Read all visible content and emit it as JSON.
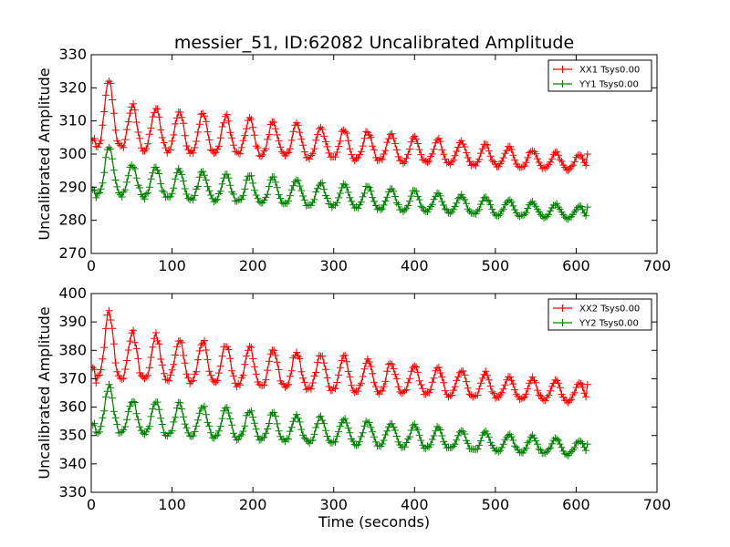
{
  "figure": {
    "title": "messier_51, ID:62082 Uncalibrated Amplitude"
  },
  "chart_data": [
    {
      "type": "line",
      "title": "messier_51, ID:62082 Uncalibrated Amplitude",
      "xlabel": "",
      "ylabel": "Uncalibrated Amplitude",
      "xlim": [
        0,
        700
      ],
      "ylim": [
        270,
        330
      ],
      "xticks": [
        "0",
        "100",
        "200",
        "300",
        "400",
        "500",
        "600",
        "700"
      ],
      "yticks": [
        "270",
        "280",
        "290",
        "300",
        "310",
        "320",
        "330"
      ],
      "grid": false,
      "legend_position": "top-right",
      "marker": "+",
      "series": [
        {
          "name": "XX1 Tsys0.00",
          "color": "#ff0000",
          "x_range": [
            0,
            614
          ],
          "baseline": {
            "start": 305,
            "end": 296
          },
          "amplitude": {
            "start": 11,
            "end": 3.5
          },
          "peak_times": [
            22,
            51,
            80,
            109,
            138,
            167,
            196,
            225,
            254,
            284,
            313,
            342,
            371,
            400,
            429,
            458,
            488,
            517,
            546,
            575,
            604
          ],
          "first_peak": 322,
          "final_value": 300
        },
        {
          "name": "YY1 Tsys0.00",
          "color": "#008000",
          "x_range": [
            0,
            614
          ],
          "baseline": {
            "start": 290,
            "end": 281
          },
          "amplitude": {
            "start": 8,
            "end": 3
          },
          "peak_times": [
            22,
            51,
            80,
            109,
            138,
            167,
            196,
            225,
            254,
            284,
            313,
            342,
            371,
            400,
            429,
            458,
            488,
            517,
            546,
            575,
            604
          ],
          "first_peak": 302,
          "final_value": 284
        }
      ]
    },
    {
      "type": "line",
      "title": "",
      "xlabel": "Time (seconds)",
      "ylabel": "Uncalibrated Amplitude",
      "xlim": [
        0,
        700
      ],
      "ylim": [
        330,
        400
      ],
      "xticks": [
        "0",
        "100",
        "200",
        "300",
        "400",
        "500",
        "600",
        "700"
      ],
      "yticks": [
        "330",
        "340",
        "350",
        "360",
        "370",
        "380",
        "390",
        "400"
      ],
      "grid": false,
      "legend_position": "top-right",
      "marker": "+",
      "series": [
        {
          "name": "XX2 Tsys0.00",
          "color": "#ff0000",
          "x_range": [
            0,
            614
          ],
          "baseline": {
            "start": 374,
            "end": 363
          },
          "amplitude": {
            "start": 14,
            "end": 5
          },
          "peak_times": [
            22,
            51,
            80,
            109,
            138,
            167,
            196,
            225,
            254,
            284,
            313,
            342,
            371,
            400,
            429,
            458,
            488,
            517,
            546,
            575,
            604
          ],
          "first_peak": 394,
          "final_value": 368
        },
        {
          "name": "YY2 Tsys0.00",
          "color": "#008000",
          "x_range": [
            0,
            614
          ],
          "baseline": {
            "start": 354,
            "end": 344
          },
          "amplitude": {
            "start": 10,
            "end": 4
          },
          "peak_times": [
            22,
            51,
            80,
            109,
            138,
            167,
            196,
            225,
            254,
            284,
            313,
            342,
            371,
            400,
            429,
            458,
            488,
            517,
            546,
            575,
            604
          ],
          "first_peak": 368,
          "final_value": 347
        }
      ]
    }
  ]
}
